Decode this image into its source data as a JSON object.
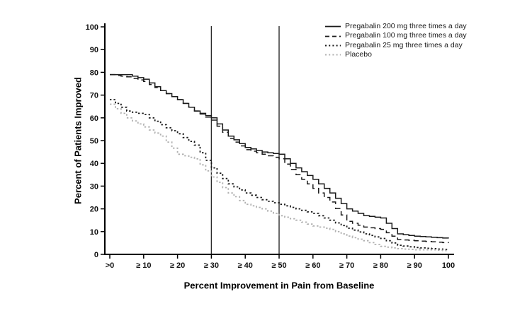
{
  "chart_data": {
    "type": "line",
    "title": "",
    "xlabel": "Percent Improvement in Pain from Baseline",
    "ylabel": "Percent of Patients Improved",
    "xlim": [
      0,
      100
    ],
    "ylim": [
      0,
      100
    ],
    "grid": false,
    "legend_position": "top-right",
    "axis_color": "#000000",
    "reference_line_color": "#2b2b2b",
    "reference_lines_x": [
      30,
      50
    ],
    "x_ticks": [
      0,
      10,
      20,
      30,
      40,
      50,
      60,
      70,
      80,
      90,
      100
    ],
    "x_tick_labels": [
      ">0",
      "≥ 10",
      "≥ 20",
      "≥ 30",
      "≥ 40",
      "≥ 50",
      "≥ 60",
      "≥ 70",
      "≥ 80",
      "≥ 90",
      "100"
    ],
    "y_ticks": [
      0,
      10,
      20,
      30,
      40,
      50,
      60,
      70,
      80,
      90,
      100
    ],
    "x": [
      0,
      5,
      10,
      15,
      20,
      25,
      30,
      35,
      40,
      45,
      50,
      55,
      60,
      65,
      70,
      75,
      80,
      85,
      90,
      95,
      100
    ],
    "series": [
      {
        "name": "Pregabalin 200 mg three times a day",
        "line_style": "solid",
        "color": "#1a1a1a",
        "values": [
          79,
          79,
          77,
          72,
          68,
          63,
          60,
          52,
          47,
          45,
          44,
          38,
          33,
          27,
          20,
          17,
          16,
          9,
          8,
          7.5,
          7
        ]
      },
      {
        "name": "Pregabalin 100 mg three times a day",
        "line_style": "dashed",
        "color": "#1a1a1a",
        "values": [
          79,
          78,
          76,
          72,
          68,
          63,
          59,
          51,
          46,
          44,
          42,
          35,
          29,
          23,
          14.5,
          12,
          11,
          6.5,
          6,
          5.5,
          5
        ]
      },
      {
        "name": "Pregabalin 25 mg three times a day",
        "line_style": "dotted",
        "color": "#1a1a1a",
        "values": [
          68,
          63,
          61.5,
          57,
          53,
          48,
          38,
          31,
          27,
          24,
          22,
          20,
          18,
          15,
          11.5,
          9,
          7,
          4,
          3,
          2.5,
          2
        ]
      },
      {
        "name": "Placebo",
        "line_style": "dotted",
        "color": "#b0b0b0",
        "values": [
          66,
          60,
          56,
          52,
          44,
          42,
          34,
          27,
          22,
          20,
          17,
          15,
          12.5,
          11,
          8,
          6,
          3.5,
          2.5,
          2,
          2,
          1.5
        ]
      }
    ]
  }
}
